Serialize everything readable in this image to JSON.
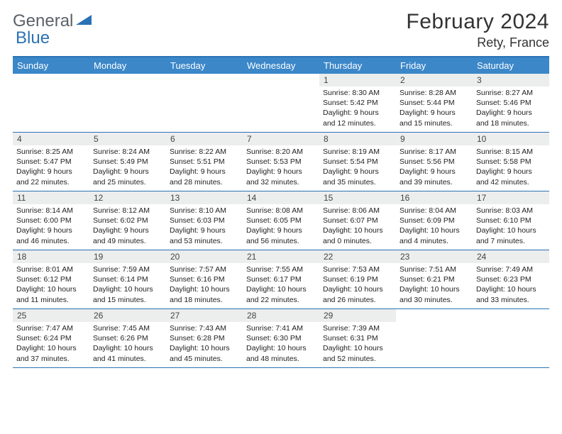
{
  "logo": {
    "part1": "General",
    "part2": "Blue"
  },
  "title": "February 2024",
  "location": "Rety, France",
  "colors": {
    "header_bg": "#3b87c8",
    "border": "#2a72b5",
    "daynum_bg": "#eceded",
    "logo_gray": "#5a6268",
    "logo_blue": "#2a72b5"
  },
  "day_names": [
    "Sunday",
    "Monday",
    "Tuesday",
    "Wednesday",
    "Thursday",
    "Friday",
    "Saturday"
  ],
  "weeks": [
    [
      {
        "n": "",
        "sr": "",
        "ss": "",
        "dl": ""
      },
      {
        "n": "",
        "sr": "",
        "ss": "",
        "dl": ""
      },
      {
        "n": "",
        "sr": "",
        "ss": "",
        "dl": ""
      },
      {
        "n": "",
        "sr": "",
        "ss": "",
        "dl": ""
      },
      {
        "n": "1",
        "sr": "Sunrise: 8:30 AM",
        "ss": "Sunset: 5:42 PM",
        "dl": "Daylight: 9 hours and 12 minutes."
      },
      {
        "n": "2",
        "sr": "Sunrise: 8:28 AM",
        "ss": "Sunset: 5:44 PM",
        "dl": "Daylight: 9 hours and 15 minutes."
      },
      {
        "n": "3",
        "sr": "Sunrise: 8:27 AM",
        "ss": "Sunset: 5:46 PM",
        "dl": "Daylight: 9 hours and 18 minutes."
      }
    ],
    [
      {
        "n": "4",
        "sr": "Sunrise: 8:25 AM",
        "ss": "Sunset: 5:47 PM",
        "dl": "Daylight: 9 hours and 22 minutes."
      },
      {
        "n": "5",
        "sr": "Sunrise: 8:24 AM",
        "ss": "Sunset: 5:49 PM",
        "dl": "Daylight: 9 hours and 25 minutes."
      },
      {
        "n": "6",
        "sr": "Sunrise: 8:22 AM",
        "ss": "Sunset: 5:51 PM",
        "dl": "Daylight: 9 hours and 28 minutes."
      },
      {
        "n": "7",
        "sr": "Sunrise: 8:20 AM",
        "ss": "Sunset: 5:53 PM",
        "dl": "Daylight: 9 hours and 32 minutes."
      },
      {
        "n": "8",
        "sr": "Sunrise: 8:19 AM",
        "ss": "Sunset: 5:54 PM",
        "dl": "Daylight: 9 hours and 35 minutes."
      },
      {
        "n": "9",
        "sr": "Sunrise: 8:17 AM",
        "ss": "Sunset: 5:56 PM",
        "dl": "Daylight: 9 hours and 39 minutes."
      },
      {
        "n": "10",
        "sr": "Sunrise: 8:15 AM",
        "ss": "Sunset: 5:58 PM",
        "dl": "Daylight: 9 hours and 42 minutes."
      }
    ],
    [
      {
        "n": "11",
        "sr": "Sunrise: 8:14 AM",
        "ss": "Sunset: 6:00 PM",
        "dl": "Daylight: 9 hours and 46 minutes."
      },
      {
        "n": "12",
        "sr": "Sunrise: 8:12 AM",
        "ss": "Sunset: 6:02 PM",
        "dl": "Daylight: 9 hours and 49 minutes."
      },
      {
        "n": "13",
        "sr": "Sunrise: 8:10 AM",
        "ss": "Sunset: 6:03 PM",
        "dl": "Daylight: 9 hours and 53 minutes."
      },
      {
        "n": "14",
        "sr": "Sunrise: 8:08 AM",
        "ss": "Sunset: 6:05 PM",
        "dl": "Daylight: 9 hours and 56 minutes."
      },
      {
        "n": "15",
        "sr": "Sunrise: 8:06 AM",
        "ss": "Sunset: 6:07 PM",
        "dl": "Daylight: 10 hours and 0 minutes."
      },
      {
        "n": "16",
        "sr": "Sunrise: 8:04 AM",
        "ss": "Sunset: 6:09 PM",
        "dl": "Daylight: 10 hours and 4 minutes."
      },
      {
        "n": "17",
        "sr": "Sunrise: 8:03 AM",
        "ss": "Sunset: 6:10 PM",
        "dl": "Daylight: 10 hours and 7 minutes."
      }
    ],
    [
      {
        "n": "18",
        "sr": "Sunrise: 8:01 AM",
        "ss": "Sunset: 6:12 PM",
        "dl": "Daylight: 10 hours and 11 minutes."
      },
      {
        "n": "19",
        "sr": "Sunrise: 7:59 AM",
        "ss": "Sunset: 6:14 PM",
        "dl": "Daylight: 10 hours and 15 minutes."
      },
      {
        "n": "20",
        "sr": "Sunrise: 7:57 AM",
        "ss": "Sunset: 6:16 PM",
        "dl": "Daylight: 10 hours and 18 minutes."
      },
      {
        "n": "21",
        "sr": "Sunrise: 7:55 AM",
        "ss": "Sunset: 6:17 PM",
        "dl": "Daylight: 10 hours and 22 minutes."
      },
      {
        "n": "22",
        "sr": "Sunrise: 7:53 AM",
        "ss": "Sunset: 6:19 PM",
        "dl": "Daylight: 10 hours and 26 minutes."
      },
      {
        "n": "23",
        "sr": "Sunrise: 7:51 AM",
        "ss": "Sunset: 6:21 PM",
        "dl": "Daylight: 10 hours and 30 minutes."
      },
      {
        "n": "24",
        "sr": "Sunrise: 7:49 AM",
        "ss": "Sunset: 6:23 PM",
        "dl": "Daylight: 10 hours and 33 minutes."
      }
    ],
    [
      {
        "n": "25",
        "sr": "Sunrise: 7:47 AM",
        "ss": "Sunset: 6:24 PM",
        "dl": "Daylight: 10 hours and 37 minutes."
      },
      {
        "n": "26",
        "sr": "Sunrise: 7:45 AM",
        "ss": "Sunset: 6:26 PM",
        "dl": "Daylight: 10 hours and 41 minutes."
      },
      {
        "n": "27",
        "sr": "Sunrise: 7:43 AM",
        "ss": "Sunset: 6:28 PM",
        "dl": "Daylight: 10 hours and 45 minutes."
      },
      {
        "n": "28",
        "sr": "Sunrise: 7:41 AM",
        "ss": "Sunset: 6:30 PM",
        "dl": "Daylight: 10 hours and 48 minutes."
      },
      {
        "n": "29",
        "sr": "Sunrise: 7:39 AM",
        "ss": "Sunset: 6:31 PM",
        "dl": "Daylight: 10 hours and 52 minutes."
      },
      {
        "n": "",
        "sr": "",
        "ss": "",
        "dl": ""
      },
      {
        "n": "",
        "sr": "",
        "ss": "",
        "dl": ""
      }
    ]
  ]
}
